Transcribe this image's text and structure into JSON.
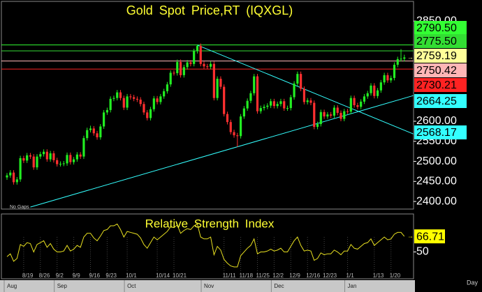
{
  "chart_data": {
    "type": "candlestick",
    "title": "Gold Spot Price,RT (IQXGL)",
    "up_color": "#22ee22",
    "down_color": "#ff3030",
    "ylim": [
      2381,
      2899
    ],
    "yticks": [
      {
        "value": 2400,
        "label": "2400.00"
      },
      {
        "value": 2450,
        "label": "2450.00"
      },
      {
        "value": 2500,
        "label": "2500.00"
      },
      {
        "value": 2550,
        "label": "2550.00"
      },
      {
        "value": 2600,
        "label": "2600.00"
      },
      {
        "value": 2850,
        "label": "2850.00"
      }
    ],
    "gaps_note": "No Gaps",
    "period": "Day",
    "categories": [
      null,
      null,
      null,
      null,
      null,
      "8/19",
      null,
      null,
      null,
      null,
      "8/26",
      null,
      null,
      null,
      null,
      "9/2",
      null,
      null,
      null,
      null,
      "9/9",
      null,
      null,
      null,
      null,
      "9/16",
      null,
      null,
      null,
      null,
      "9/23",
      null,
      null,
      null,
      null,
      null,
      "10/1",
      null,
      null,
      null,
      null,
      null,
      null,
      null,
      null,
      "10/14",
      null,
      null,
      null,
      null,
      "10/21",
      null,
      null,
      null,
      null,
      null,
      null,
      null,
      null,
      null,
      null,
      null,
      null,
      null,
      null,
      "11/11",
      null,
      null,
      null,
      null,
      "11/18",
      null,
      null,
      null,
      null,
      "11/25",
      null,
      null,
      null,
      null,
      "12/2",
      null,
      null,
      null,
      null,
      "12/9",
      null,
      null,
      null,
      null,
      "12/16",
      null,
      null,
      null,
      null,
      "12/23",
      null,
      null,
      null,
      null,
      null,
      null,
      "1/1",
      null,
      null,
      null,
      null,
      null,
      null,
      null,
      "1/13",
      null,
      null,
      null,
      null,
      "1/20",
      null,
      null,
      null,
      null
    ],
    "months": [
      "Aug",
      null,
      null,
      null,
      null,
      null,
      null,
      null,
      null,
      null,
      null,
      null,
      null,
      null,
      null,
      "Sep",
      null,
      null,
      null,
      null,
      null,
      null,
      null,
      null,
      null,
      null,
      null,
      null,
      null,
      null,
      null,
      null,
      null,
      null,
      null,
      null,
      "Oct",
      null,
      null,
      null,
      null,
      null,
      null,
      null,
      null,
      null,
      null,
      null,
      null,
      null,
      null,
      null,
      null,
      null,
      null,
      null,
      null,
      null,
      null,
      "Nov",
      null,
      null,
      null,
      null,
      null,
      null,
      null,
      null,
      null,
      null,
      null,
      null,
      null,
      null,
      null,
      null,
      null,
      null,
      null,
      null,
      "Dec",
      null,
      null,
      null,
      null,
      null,
      null,
      null,
      null,
      null,
      null,
      null,
      null,
      null,
      null,
      null,
      null,
      null,
      null,
      null,
      null,
      null,
      "Jan",
      null,
      null,
      null,
      null,
      null,
      null,
      null,
      null,
      null,
      null,
      null,
      null,
      null,
      null,
      null,
      null,
      null
    ],
    "ohlc": [
      [
        2460,
        2471,
        2454,
        2465
      ],
      [
        2465,
        2478,
        2459,
        2472
      ],
      [
        2472,
        2478,
        2442,
        2448
      ],
      [
        2448,
        2461,
        2442,
        2455
      ],
      [
        2455,
        2514,
        2449,
        2508
      ],
      [
        2508,
        2514,
        2496,
        2502
      ],
      [
        2502,
        2521,
        2496,
        2515
      ],
      [
        2515,
        2521,
        2506,
        2512
      ],
      [
        2512,
        2518,
        2479,
        2485
      ],
      [
        2485,
        2518,
        2479,
        2512
      ],
      [
        2512,
        2524,
        2506,
        2518
      ],
      [
        2518,
        2530,
        2512,
        2524
      ],
      [
        2524,
        2530,
        2499,
        2505
      ],
      [
        2505,
        2526,
        2499,
        2520
      ],
      [
        2520,
        2526,
        2497,
        2503
      ],
      [
        2503,
        2509,
        2487,
        2493
      ],
      [
        2493,
        2500,
        2487,
        2494
      ],
      [
        2494,
        2501,
        2488,
        2495
      ],
      [
        2495,
        2522,
        2489,
        2516
      ],
      [
        2516,
        2522,
        2492,
        2498
      ],
      [
        2498,
        2511,
        2492,
        2505
      ],
      [
        2505,
        2523,
        2499,
        2517
      ],
      [
        2517,
        2523,
        2506,
        2512
      ],
      [
        2512,
        2564,
        2506,
        2558
      ],
      [
        2558,
        2584,
        2552,
        2578
      ],
      [
        2578,
        2589,
        2572,
        2582
      ],
      [
        2582,
        2588,
        2564,
        2570
      ],
      [
        2570,
        2576,
        2554,
        2560
      ],
      [
        2560,
        2593,
        2554,
        2587
      ],
      [
        2587,
        2628,
        2581,
        2622
      ],
      [
        2622,
        2634,
        2616,
        2628
      ],
      [
        2628,
        2662,
        2622,
        2656
      ],
      [
        2656,
        2664,
        2650,
        2658
      ],
      [
        2658,
        2678,
        2652,
        2672
      ],
      [
        2672,
        2678,
        2652,
        2658
      ],
      [
        2658,
        2664,
        2628,
        2634
      ],
      [
        2634,
        2668,
        2628,
        2662
      ],
      [
        2662,
        2668,
        2654,
        2660
      ],
      [
        2660,
        2666,
        2650,
        2656
      ],
      [
        2656,
        2662,
        2648,
        2654
      ],
      [
        2654,
        2660,
        2637,
        2643
      ],
      [
        2643,
        2649,
        2616,
        2622
      ],
      [
        2622,
        2628,
        2602,
        2608
      ],
      [
        2608,
        2636,
        2602,
        2630
      ],
      [
        2630,
        2663,
        2624,
        2657
      ],
      [
        2657,
        2663,
        2642,
        2648
      ],
      [
        2648,
        2668,
        2642,
        2662
      ],
      [
        2662,
        2681,
        2656,
        2675
      ],
      [
        2675,
        2698,
        2669,
        2692
      ],
      [
        2692,
        2727,
        2686,
        2721
      ],
      [
        2721,
        2727,
        2714,
        2720
      ],
      [
        2720,
        2754,
        2714,
        2748
      ],
      [
        2748,
        2754,
        2709,
        2715
      ],
      [
        2715,
        2741,
        2709,
        2735
      ],
      [
        2735,
        2753,
        2729,
        2747
      ],
      [
        2747,
        2753,
        2737,
        2743
      ],
      [
        2743,
        2781,
        2737,
        2775
      ],
      [
        2775,
        2790,
        2769,
        2788
      ],
      [
        2788,
        2794,
        2737,
        2743
      ],
      [
        2743,
        2749,
        2731,
        2737
      ],
      [
        2737,
        2743,
        2730,
        2736
      ],
      [
        2736,
        2749,
        2730,
        2743
      ],
      [
        2743,
        2749,
        2652,
        2658
      ],
      [
        2658,
        2712,
        2652,
        2706
      ],
      [
        2706,
        2712,
        2680,
        2686
      ],
      [
        2686,
        2692,
        2612,
        2618
      ],
      [
        2618,
        2624,
        2592,
        2598
      ],
      [
        2598,
        2604,
        2567,
        2573
      ],
      [
        2573,
        2579,
        2559,
        2565
      ],
      [
        2565,
        2571,
        2536,
        2563
      ],
      [
        2563,
        2618,
        2557,
        2612
      ],
      [
        2612,
        2638,
        2606,
        2632
      ],
      [
        2632,
        2657,
        2626,
        2651
      ],
      [
        2651,
        2676,
        2645,
        2670
      ],
      [
        2670,
        2718,
        2664,
        2712
      ],
      [
        2712,
        2718,
        2619,
        2625
      ],
      [
        2625,
        2639,
        2619,
        2633
      ],
      [
        2633,
        2642,
        2627,
        2636
      ],
      [
        2636,
        2645,
        2630,
        2639
      ],
      [
        2639,
        2656,
        2633,
        2650
      ],
      [
        2650,
        2656,
        2632,
        2638
      ],
      [
        2638,
        2649,
        2632,
        2643
      ],
      [
        2643,
        2656,
        2637,
        2650
      ],
      [
        2650,
        2656,
        2626,
        2632
      ],
      [
        2632,
        2639,
        2626,
        2633
      ],
      [
        2633,
        2666,
        2627,
        2660
      ],
      [
        2660,
        2700,
        2654,
        2694
      ],
      [
        2694,
        2724,
        2688,
        2718
      ],
      [
        2718,
        2724,
        2675,
        2681
      ],
      [
        2681,
        2687,
        2642,
        2648
      ],
      [
        2648,
        2658,
        2642,
        2652
      ],
      [
        2652,
        2658,
        2640,
        2646
      ],
      [
        2646,
        2652,
        2580,
        2586
      ],
      [
        2586,
        2599,
        2580,
        2593
      ],
      [
        2593,
        2629,
        2587,
        2623
      ],
      [
        2623,
        2629,
        2606,
        2612
      ],
      [
        2612,
        2623,
        2606,
        2617
      ],
      [
        2617,
        2623,
        2608,
        2614
      ],
      [
        2614,
        2640,
        2608,
        2634
      ],
      [
        2634,
        2640,
        2615,
        2621
      ],
      [
        2621,
        2627,
        2600,
        2606
      ],
      [
        2606,
        2631,
        2600,
        2625
      ],
      [
        2625,
        2631,
        2618,
        2624
      ],
      [
        2624,
        2664,
        2618,
        2658
      ],
      [
        2658,
        2664,
        2634,
        2640
      ],
      [
        2640,
        2646,
        2630,
        2636
      ],
      [
        2636,
        2655,
        2630,
        2649
      ],
      [
        2649,
        2668,
        2643,
        2662
      ],
      [
        2662,
        2676,
        2656,
        2670
      ],
      [
        2670,
        2695,
        2664,
        2689
      ],
      [
        2689,
        2695,
        2657,
        2663
      ],
      [
        2663,
        2683,
        2657,
        2677
      ],
      [
        2677,
        2703,
        2671,
        2697
      ],
      [
        2697,
        2721,
        2691,
        2715
      ],
      [
        2715,
        2721,
        2696,
        2702
      ],
      [
        2702,
        2714,
        2696,
        2708
      ],
      [
        2708,
        2747,
        2702,
        2741
      ],
      [
        2741,
        2761,
        2735,
        2755
      ],
      [
        2755,
        2780,
        2749,
        2756
      ],
      [
        2756,
        2766,
        2749,
        2759.19
      ]
    ],
    "last_price_color": "#ffff99",
    "levels": [
      {
        "value": 2790.5,
        "label": "2790.50",
        "color": "#33ff33",
        "line": true
      },
      {
        "value": 2775.5,
        "label": "2775.50",
        "color": "#33dd33",
        "line": true
      },
      {
        "value": 2750.42,
        "label": "2750.42",
        "color": "#ffb6b6",
        "line": true
      },
      {
        "value": 2730.21,
        "label": "2730.21",
        "color": "#ff2222",
        "line": true
      },
      {
        "value": 2664.25,
        "label": "2664.25",
        "color": "#33ffff",
        "line": false,
        "trend_start_index": 7,
        "trend_start_value": 2386
      },
      {
        "value": 2568.17,
        "label": "2568.17",
        "color": "#33ffff",
        "line": false,
        "trend_start_index": 57,
        "trend_start_value": 2790
      }
    ],
    "rsi": {
      "title": "Relative Strength Index",
      "color": "#e8e020",
      "last_color": "#ffff00",
      "ylim": [
        22,
        90
      ],
      "yticks": [
        50
      ],
      "values": [
        45,
        48,
        40,
        43,
        58,
        56,
        60,
        59,
        50,
        58,
        60,
        62,
        55,
        59,
        53,
        50,
        50,
        51,
        57,
        51,
        53,
        57,
        55,
        66,
        70,
        70,
        65,
        62,
        67,
        73,
        74,
        78,
        78,
        80,
        74,
        66,
        72,
        71,
        70,
        69,
        65,
        58,
        54,
        60,
        66,
        63,
        66,
        69,
        72,
        77,
        76,
        79,
        70,
        73,
        75,
        74,
        78,
        80,
        66,
        64,
        64,
        66,
        47,
        56,
        52,
        42,
        38,
        35,
        34,
        34,
        46,
        50,
        54,
        57,
        64,
        48,
        50,
        50,
        51,
        53,
        51,
        52,
        54,
        50,
        50,
        56,
        62,
        66,
        57,
        51,
        52,
        51,
        41,
        43,
        49,
        47,
        48,
        48,
        52,
        50,
        47,
        51,
        51,
        58,
        54,
        53,
        56,
        59,
        60,
        64,
        57,
        60,
        63,
        66,
        63,
        64,
        69,
        71,
        71,
        66.71
      ]
    }
  }
}
